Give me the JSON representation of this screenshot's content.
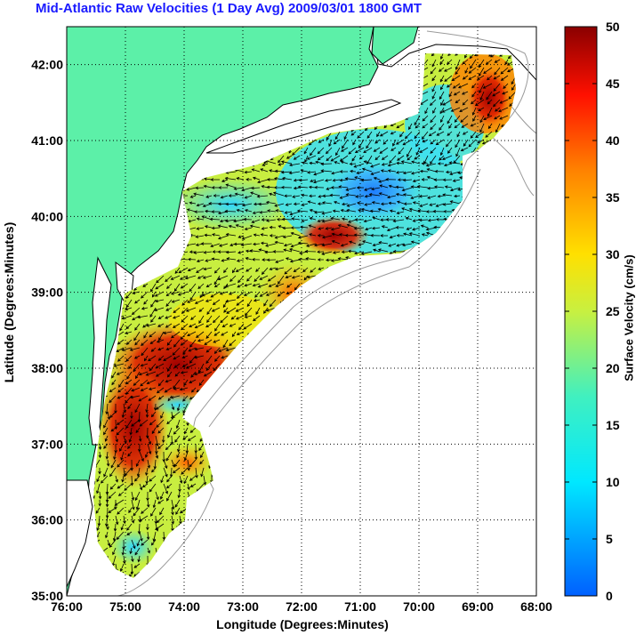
{
  "title": "Mid-Atlantic Raw Velocities (1 Day Avg) 2009/03/01 1800 GMT",
  "xaxis": {
    "label": "Longitude (Degrees:Minutes)",
    "ticks": [
      "76:00",
      "75:00",
      "74:00",
      "73:00",
      "72:00",
      "71:00",
      "70:00",
      "69:00",
      "68:00"
    ],
    "range": [
      -76,
      -68
    ]
  },
  "yaxis": {
    "label": "Latitude (Degrees:Minutes)",
    "ticks": [
      "35:00",
      "36:00",
      "37:00",
      "38:00",
      "39:00",
      "40:00",
      "41:00",
      "42:00"
    ],
    "range": [
      35,
      42.5
    ]
  },
  "colorbar": {
    "label": "Surface Velocity (cm/s)",
    "ticks": [
      "0",
      "5",
      "10",
      "15",
      "20",
      "25",
      "30",
      "35",
      "40",
      "45",
      "50"
    ],
    "range": [
      0,
      50
    ]
  },
  "colors": {
    "land": "#5cf0a8",
    "grid": "#000000",
    "bathymetry": "#9a9a9a",
    "title": "#1a1aff"
  },
  "grid": "dotted"
}
